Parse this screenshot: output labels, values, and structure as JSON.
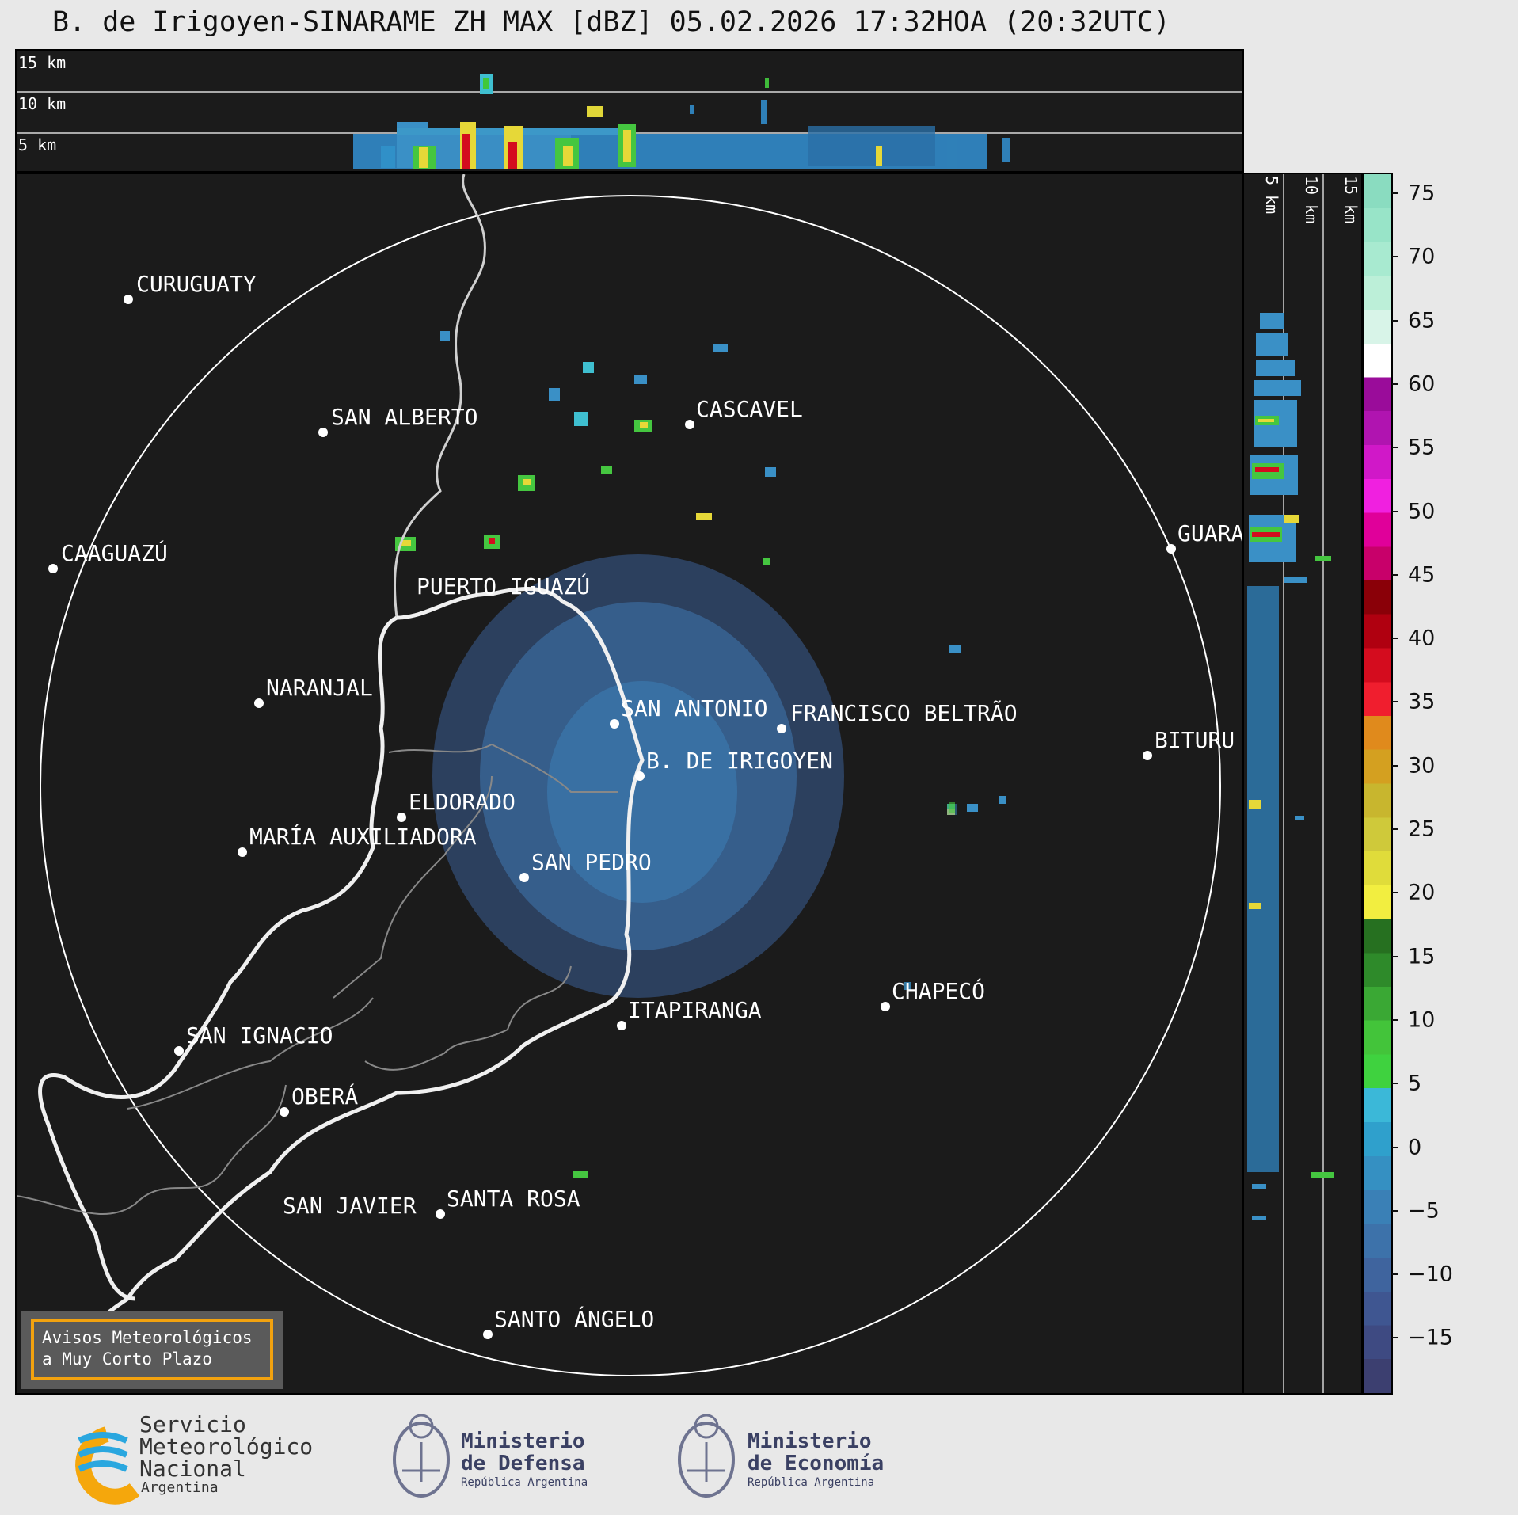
{
  "title": "B. de Irigoyen-SINARAME ZH MAX [dBZ] 05.02.2026 17:32HOA (20:32UTC)",
  "top_panel": {
    "height_labels": [
      "15 km",
      "10 km",
      "5 km"
    ]
  },
  "side_panel": {
    "height_labels": [
      "5 km",
      "10 km",
      "15 km"
    ]
  },
  "colorbar": {
    "unit": "dBZ",
    "ticks": [
      "75",
      "70",
      "65",
      "60",
      "55",
      "50",
      "45",
      "40",
      "35",
      "30",
      "25",
      "20",
      "15",
      "10",
      "5",
      "0",
      "−5",
      "−10",
      "−15"
    ],
    "colors": [
      "#3c3f70",
      "#3e4a82",
      "#3f5691",
      "#3f649e",
      "#3d72aa",
      "#3a80b6",
      "#3590c2",
      "#2fa0cc",
      "#3bb8d8",
      "#3fd23f",
      "#43c43a",
      "#3aa834",
      "#2e8a2a",
      "#267020",
      "#f2ee40",
      "#e0dc3a",
      "#cfc93a",
      "#c8b62e",
      "#d4a020",
      "#e08a1c",
      "#f01e2e",
      "#d40c1e",
      "#b00010",
      "#8a0008",
      "#c8006a",
      "#e0009a",
      "#f020e0",
      "#d018c8",
      "#b014b0",
      "#9a0c9a",
      "#ffffff",
      "#d8f4e8",
      "#bcefd8",
      "#a8ead0",
      "#98e4c8",
      "#8adcc0"
    ]
  },
  "map": {
    "radar_site": "B. DE IRIGOYEN",
    "cities": [
      "CURUGUATY",
      "SAN ALBERTO",
      "CASCAVEL",
      "CAAGUAZÚ",
      "PUERTO IGUAZÚ",
      "GUARA",
      "NARANJAL",
      "SAN ANTONIO",
      "FRANCISCO BELTRÃO",
      "B. DE IRIGOYEN",
      "BITURU",
      "ELDORADO",
      "MARÍA AUXILIADORA",
      "SAN PEDRO",
      "CHAPECÓ",
      "ITAPIRANGA",
      "SAN IGNACIO",
      "OBERÁ",
      "SAN JAVIER",
      "SANTA ROSA",
      "SANTO ÁNGELO"
    ],
    "notice": [
      "Avisos Meteorológicos",
      "a Muy Corto Plazo"
    ]
  },
  "footer": {
    "smn": [
      "Servicio",
      "Meteorológico",
      "Nacional",
      "Argentina"
    ],
    "defensa": [
      "Ministerio",
      "de Defensa",
      "República Argentina"
    ],
    "economia": [
      "Ministerio",
      "de Economía",
      "República Argentina"
    ]
  }
}
